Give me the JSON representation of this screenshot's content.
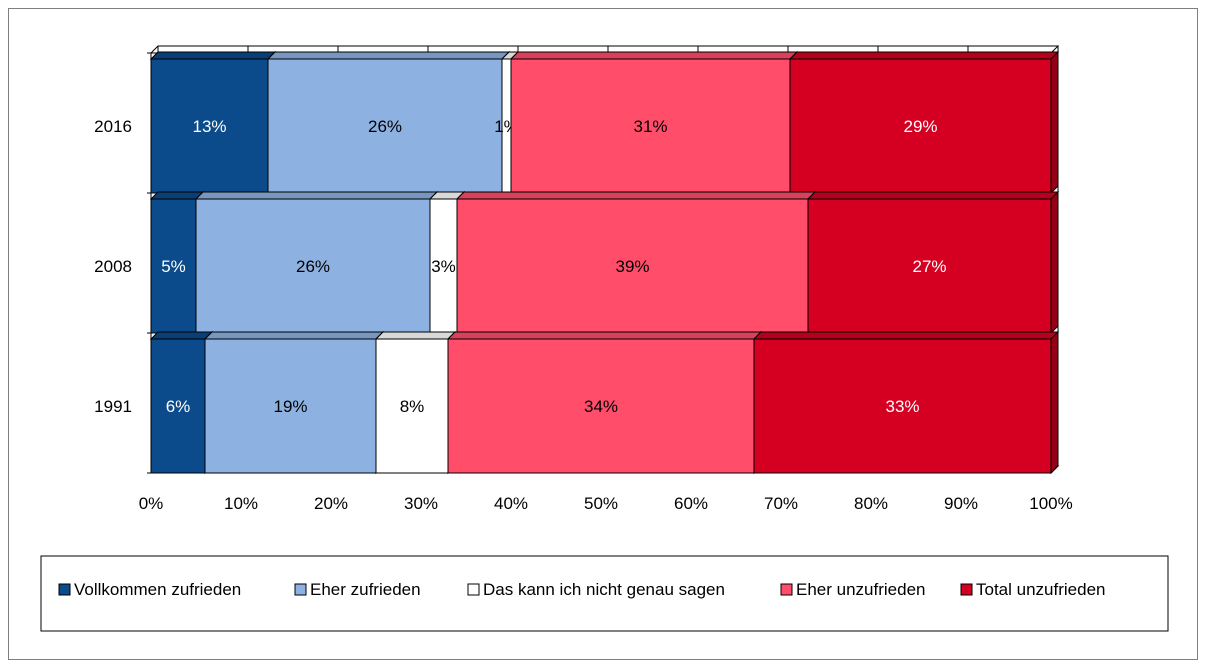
{
  "chart_data": {
    "type": "bar",
    "orientation": "horizontal",
    "stacked": "percent",
    "categories": [
      "2016",
      "2008",
      "1991"
    ],
    "series": [
      {
        "name": "Vollkommen zufrieden",
        "color": "#0B4A8B",
        "label_color": "#ffffff",
        "values": [
          13,
          5,
          6
        ],
        "labels": [
          "13%",
          "5%",
          "6%"
        ]
      },
      {
        "name": "Eher zufrieden",
        "color": "#8DB2E2",
        "label_color": "#000000",
        "values": [
          26,
          26,
          19
        ],
        "labels": [
          "26%",
          "26%",
          "19%"
        ]
      },
      {
        "name": "Das kann ich nicht genau sagen",
        "color": "#FFFFFF",
        "label_color": "#000000",
        "values": [
          1,
          3,
          8
        ],
        "labels": [
          "1%",
          "3%",
          "8%"
        ]
      },
      {
        "name": "Eher unzufrieden",
        "color": "#FF4D6A",
        "label_color": "#000000",
        "values": [
          31,
          39,
          34
        ],
        "labels": [
          "31%",
          "39%",
          "34%"
        ]
      },
      {
        "name": "Total unzufrieden",
        "color": "#D50021",
        "label_color": "#ffffff",
        "values": [
          29,
          27,
          33
        ],
        "labels": [
          "29%",
          "27%",
          "33%"
        ]
      }
    ],
    "x_ticks": [
      "0%",
      "10%",
      "20%",
      "30%",
      "40%",
      "50%",
      "60%",
      "70%",
      "80%",
      "90%",
      "100%"
    ],
    "xlim": [
      0,
      100
    ],
    "title": "",
    "xlabel": "",
    "ylabel": "",
    "legend_position": "bottom",
    "grid": true
  }
}
